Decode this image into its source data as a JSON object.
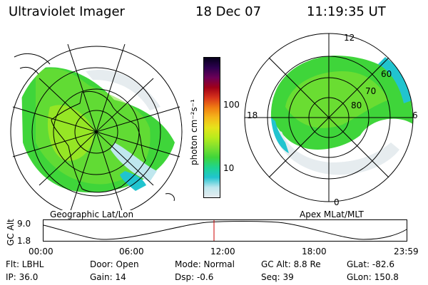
{
  "header": {
    "instrument": "Ultraviolet Imager",
    "date": "18 Dec 07",
    "time": "11:19:35 UT"
  },
  "left_map": {
    "caption": "Geographic Lat/Lon"
  },
  "right_map": {
    "caption": "Apex MLat/MLT",
    "mlt_labels": {
      "top": "12",
      "left": "18",
      "right": "6",
      "bottom": "0"
    },
    "lat_labels": [
      "60",
      "70",
      "80"
    ]
  },
  "colorbar": {
    "unit_label": "photon cm⁻²s⁻¹",
    "ticks": [
      "100",
      "10"
    ],
    "colors": [
      "#e6ecef",
      "#bfe7ee",
      "#21c4cf",
      "#1ed490",
      "#3fd53a",
      "#7ee02f",
      "#b9ec1c",
      "#e6e31b",
      "#f5b81a",
      "#f07d12",
      "#d7331b",
      "#a00018",
      "#6c0057",
      "#2d004f",
      "#06001c"
    ]
  },
  "timeline": {
    "axis_label": "GC Alt",
    "y_top": "9.0",
    "y_bottom": "1.8",
    "ticks": [
      "00:00",
      "06:00",
      "12:00",
      "18:00",
      "23:59"
    ],
    "marker_color": "#cc0000"
  },
  "info": {
    "flt": "Flt: LBHL",
    "ip": "IP: 36.0",
    "door": "Door: Open",
    "gain": "Gain: 14",
    "mode": "Mode: Normal",
    "dsp": "Dsp:    -0.6",
    "gc_alt": "GC Alt: 8.8 Re",
    "seq": "Seq: 39",
    "glat": "GLat:  -82.6",
    "glon": "GLon: 150.8"
  }
}
